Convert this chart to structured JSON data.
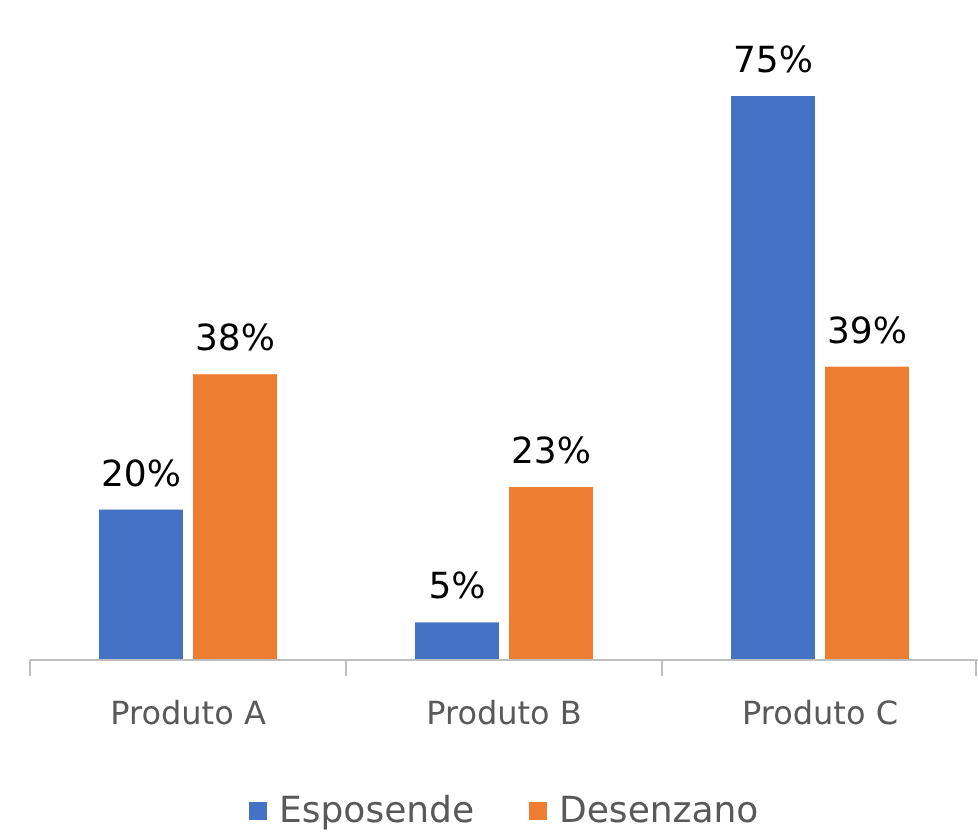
{
  "chart_data": {
    "type": "bar",
    "categories": [
      "Produto A",
      "Produto B",
      "Produto C"
    ],
    "series": [
      {
        "name": "Esposende",
        "color": "#4472c4",
        "values": [
          20,
          5,
          75
        ],
        "value_labels": [
          "20%",
          "5%",
          "75%"
        ]
      },
      {
        "name": "Desenzano",
        "color": "#ed7d31",
        "values": [
          38,
          23,
          39
        ],
        "value_labels": [
          "38%",
          "23%",
          "39%"
        ]
      }
    ],
    "legend": "bottom"
  }
}
